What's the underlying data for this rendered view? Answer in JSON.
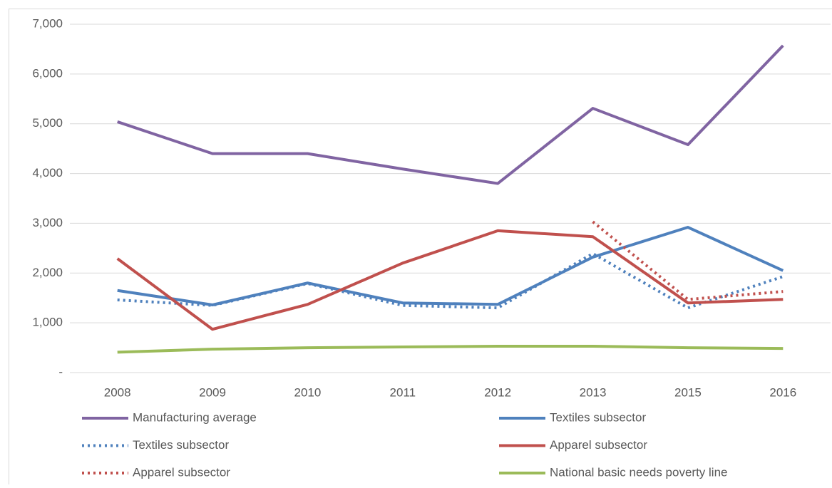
{
  "chart_data": {
    "type": "line",
    "categories": [
      "2008",
      "2009",
      "2010",
      "2011",
      "2012",
      "2013",
      "2015",
      "2016"
    ],
    "series": [
      {
        "name": "Manufacturing average",
        "color": "#8064a2",
        "dash": "solid",
        "values": [
          5040,
          4400,
          4400,
          4090,
          3800,
          5310,
          4580,
          6570
        ]
      },
      {
        "name": "Textiles subsector",
        "color": "#4f81bd",
        "dash": "solid",
        "values": [
          1650,
          1360,
          1800,
          1400,
          1370,
          2320,
          2920,
          2050
        ]
      },
      {
        "name": "Textiles subsector",
        "color": "#4f81bd",
        "dash": "dotted",
        "values": [
          1460,
          1350,
          1790,
          1350,
          1300,
          2390,
          1300,
          1930
        ]
      },
      {
        "name": "Apparel subsector",
        "color": "#c0504d",
        "dash": "solid",
        "values": [
          2290,
          870,
          1370,
          2200,
          2850,
          2730,
          1400,
          1470
        ]
      },
      {
        "name": "Apparel subsector",
        "color": "#c0504d",
        "dash": "dotted",
        "values": [
          null,
          null,
          null,
          null,
          null,
          3030,
          1470,
          1630
        ]
      },
      {
        "name": "National basic needs poverty line",
        "color": "#9bbb59",
        "dash": "solid",
        "values": [
          410,
          470,
          500,
          515,
          530,
          530,
          500,
          485
        ]
      }
    ],
    "ylim": [
      0,
      7000
    ],
    "yticks": [
      {
        "value": 0,
        "label": "-"
      },
      {
        "value": 1000,
        "label": "1,000"
      },
      {
        "value": 2000,
        "label": "2,000"
      },
      {
        "value": 3000,
        "label": "3,000"
      },
      {
        "value": 4000,
        "label": "4,000"
      },
      {
        "value": 5000,
        "label": "5,000"
      },
      {
        "value": 6000,
        "label": "6,000"
      },
      {
        "value": 7000,
        "label": "7,000"
      }
    ],
    "grid": true,
    "legend": "bottom"
  }
}
